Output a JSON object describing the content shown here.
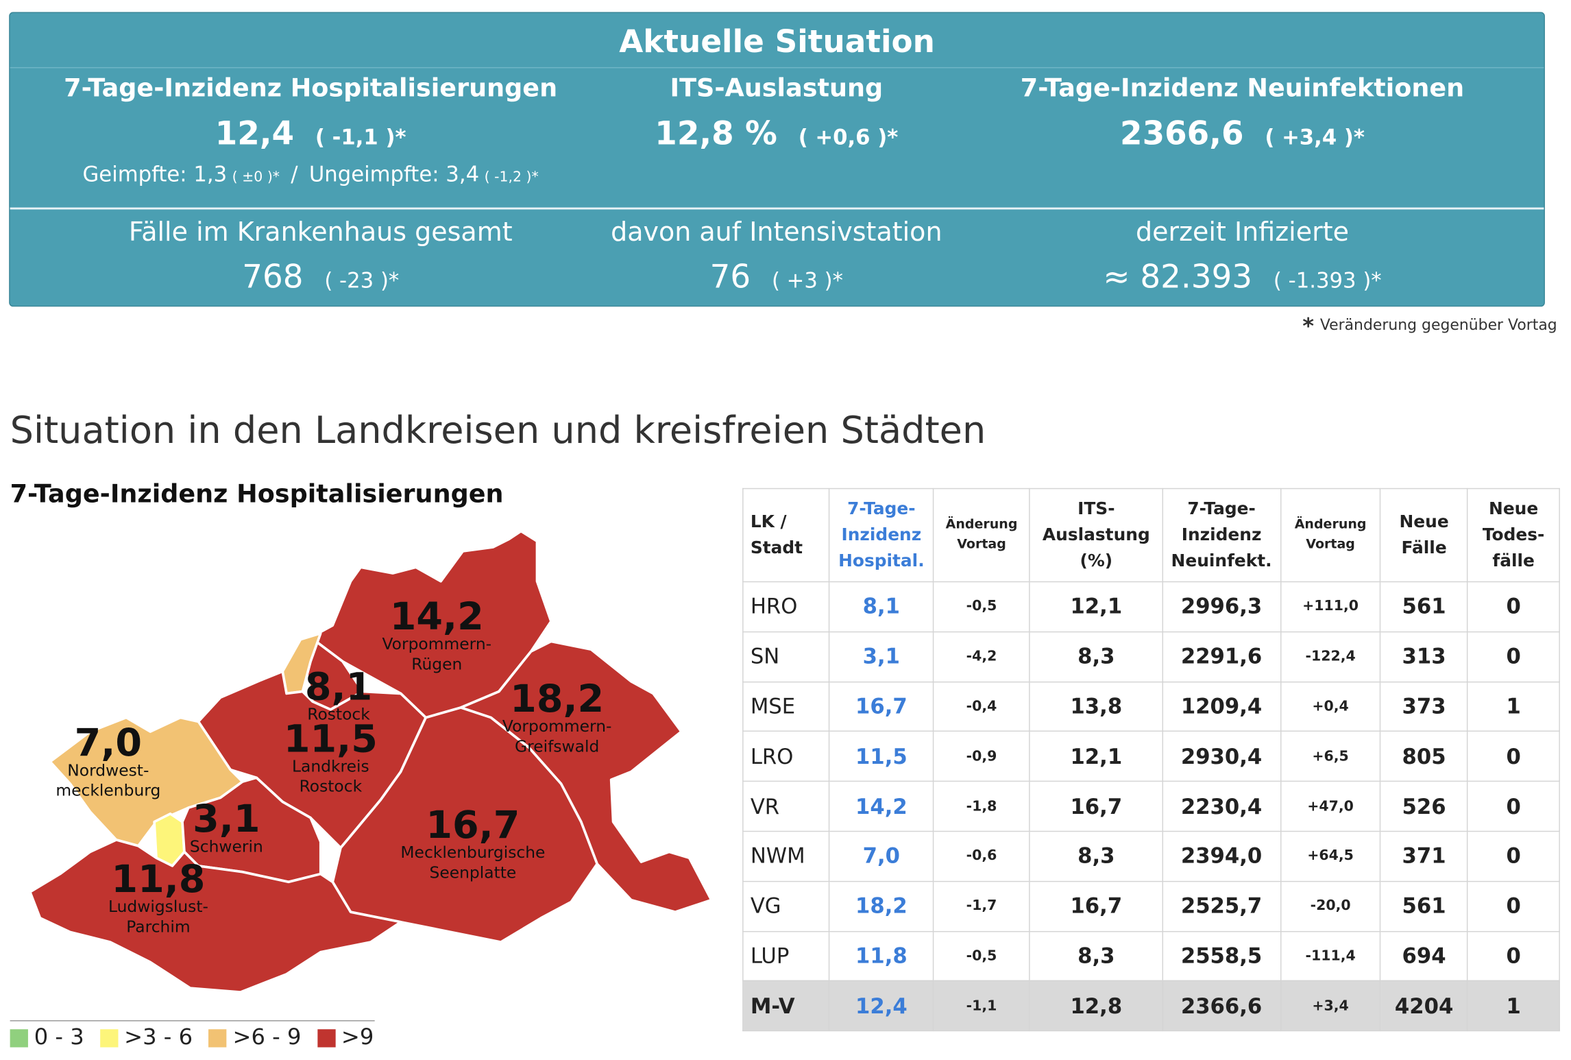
{
  "panel": {
    "title": "Aktuelle Situation",
    "hosp": {
      "label": "7-Tage-Inzidenz Hospitalisierungen",
      "value": "12,4",
      "change": "( -1,1 )*",
      "geimpfte_label": "Geimpfte: 1,3",
      "geimpfte_change": "( ±0 )*",
      "slash": "/",
      "ungeimpfte_label": "Ungeimpfte: 3,4",
      "ungeimpfte_change": "( -1,2 )*"
    },
    "its": {
      "label": "ITS-Auslastung",
      "value": "12,8 %",
      "change": "( +0,6 )*"
    },
    "neuinf": {
      "label": "7-Tage-Inzidenz Neuinfektionen",
      "value": "2366,6",
      "change": "( +3,4 )*"
    },
    "kh": {
      "label": "Fälle im Krankenhaus gesamt",
      "value": "768",
      "change": "( -23 )*"
    },
    "intensiv": {
      "label": "davon auf Intensivstation",
      "value": "76",
      "change": "( +3 )*"
    },
    "infizierte": {
      "label": "derzeit Infizierte",
      "value": "≈ 82.393",
      "change": "( -1.393 )*"
    }
  },
  "footnote": {
    "star": "*",
    "text": "Veränderung gegenüber Vortag"
  },
  "section_title": "Situation in den Landkreisen und kreisfreien Städten",
  "map": {
    "title": "7-Tage-Inzidenz Hospitalisierungen",
    "colors": {
      "low": "#90d07e",
      "mid": "#fdf57a",
      "high": "#f2c273",
      "veryhigh": "#c0342f"
    },
    "regions": [
      {
        "id": "vr",
        "value": "14,2",
        "name_lines": [
          "Vorpommern-",
          "Rügen"
        ]
      },
      {
        "id": "hro",
        "value": "8,1",
        "name_lines": [
          "Rostock"
        ]
      },
      {
        "id": "vg",
        "value": "18,2",
        "name_lines": [
          "Vorpommern-",
          "Greifswald"
        ]
      },
      {
        "id": "lro",
        "value": "11,5",
        "name_lines": [
          "Landkreis",
          "Rostock"
        ]
      },
      {
        "id": "nwm",
        "value": "7,0",
        "name_lines": [
          "Nordwest-",
          "mecklenburg"
        ]
      },
      {
        "id": "sn",
        "value": "3,1",
        "name_lines": [
          "Schwerin"
        ]
      },
      {
        "id": "mse",
        "value": "16,7",
        "name_lines": [
          "Mecklenburgische",
          "Seenplatte"
        ]
      },
      {
        "id": "lup",
        "value": "11,8",
        "name_lines": [
          "Ludwigslust-",
          "Parchim"
        ]
      }
    ],
    "legend": [
      {
        "label": "0 - 3",
        "color": "#90d07e"
      },
      {
        "label": ">3 - 6",
        "color": "#fdf57a"
      },
      {
        "label": ">6 - 9",
        "color": "#f2c273"
      },
      {
        "label": ">9",
        "color": "#c0342f"
      }
    ]
  },
  "table": {
    "headers": {
      "lk": [
        "LK /",
        "Stadt"
      ],
      "hosp": [
        "7-Tage-",
        "Inzidenz",
        "Hospital."
      ],
      "hosp_chg": [
        "Änderung",
        "Vortag"
      ],
      "its": [
        "ITS-",
        "Auslastung",
        "(%)"
      ],
      "neuinf": [
        "7-Tage-",
        "Inzidenz",
        "Neuinfekt."
      ],
      "neuinf_chg": [
        "Änderung",
        "Vortag"
      ],
      "faelle": [
        "Neue",
        "Fälle"
      ],
      "tode": [
        "Neue",
        "Todes-",
        "fälle"
      ]
    },
    "rows": [
      {
        "lk": "HRO",
        "hosp": "8,1",
        "hosp_chg": "-0,5",
        "its": "12,1",
        "neuinf": "2996,3",
        "neuinf_chg": "+111,0",
        "faelle": "561",
        "tode": "0"
      },
      {
        "lk": "SN",
        "hosp": "3,1",
        "hosp_chg": "-4,2",
        "its": "8,3",
        "neuinf": "2291,6",
        "neuinf_chg": "-122,4",
        "faelle": "313",
        "tode": "0"
      },
      {
        "lk": "MSE",
        "hosp": "16,7",
        "hosp_chg": "-0,4",
        "its": "13,8",
        "neuinf": "1209,4",
        "neuinf_chg": "+0,4",
        "faelle": "373",
        "tode": "1"
      },
      {
        "lk": "LRO",
        "hosp": "11,5",
        "hosp_chg": "-0,9",
        "its": "12,1",
        "neuinf": "2930,4",
        "neuinf_chg": "+6,5",
        "faelle": "805",
        "tode": "0"
      },
      {
        "lk": "VR",
        "hosp": "14,2",
        "hosp_chg": "-1,8",
        "its": "16,7",
        "neuinf": "2230,4",
        "neuinf_chg": "+47,0",
        "faelle": "526",
        "tode": "0"
      },
      {
        "lk": "NWM",
        "hosp": "7,0",
        "hosp_chg": "-0,6",
        "its": "8,3",
        "neuinf": "2394,0",
        "neuinf_chg": "+64,5",
        "faelle": "371",
        "tode": "0"
      },
      {
        "lk": "VG",
        "hosp": "18,2",
        "hosp_chg": "-1,7",
        "its": "16,7",
        "neuinf": "2525,7",
        "neuinf_chg": "-20,0",
        "faelle": "561",
        "tode": "0"
      },
      {
        "lk": "LUP",
        "hosp": "11,8",
        "hosp_chg": "-0,5",
        "its": "8,3",
        "neuinf": "2558,5",
        "neuinf_chg": "-111,4",
        "faelle": "694",
        "tode": "0"
      }
    ],
    "total": {
      "lk": "M-V",
      "hosp": "12,4",
      "hosp_chg": "-1,1",
      "its": "12,8",
      "neuinf": "2366,6",
      "neuinf_chg": "+3,4",
      "faelle": "4204",
      "tode": "1"
    }
  }
}
